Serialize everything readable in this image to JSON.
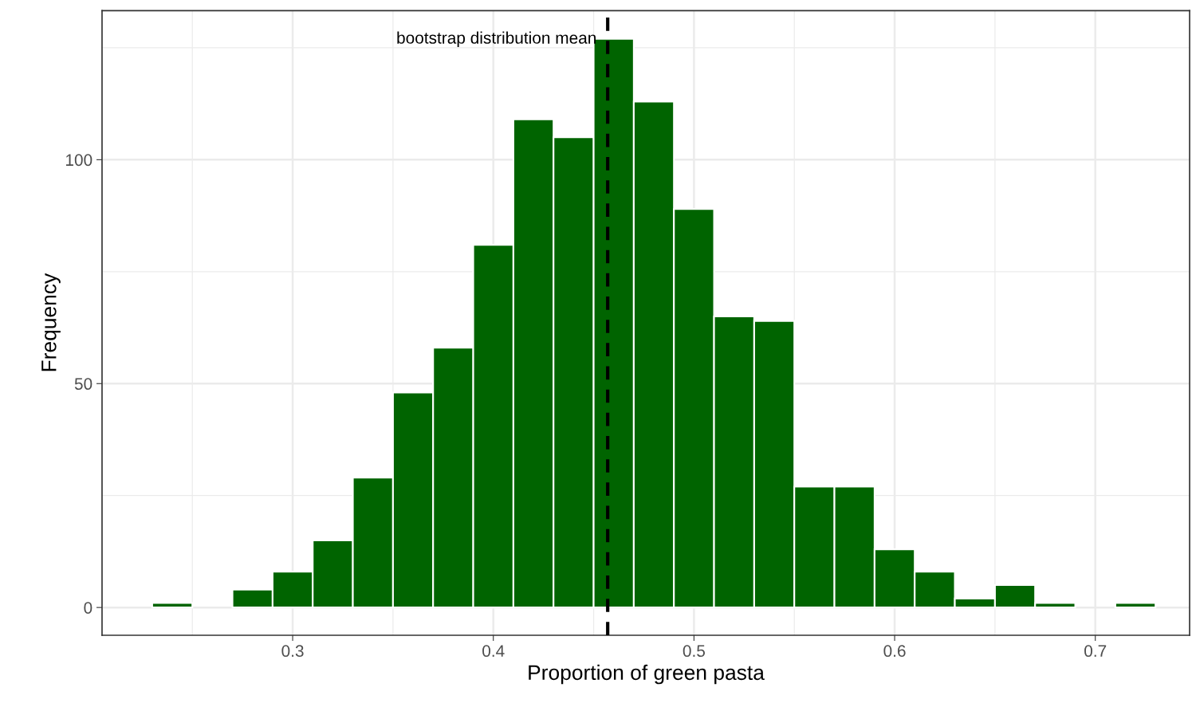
{
  "chart_data": {
    "type": "histogram",
    "xlabel": "Proportion of green pasta",
    "ylabel": "Frequency",
    "bins": [
      0.23,
      0.25,
      0.27,
      0.29,
      0.31,
      0.33,
      0.35,
      0.37,
      0.39,
      0.41,
      0.43,
      0.45,
      0.47,
      0.49,
      0.51,
      0.53,
      0.55,
      0.57,
      0.59,
      0.61,
      0.63,
      0.65,
      0.67,
      0.69,
      0.71,
      0.73
    ],
    "values": [
      1,
      0,
      4,
      8,
      15,
      29,
      48,
      58,
      81,
      109,
      105,
      127,
      113,
      89,
      65,
      64,
      27,
      27,
      13,
      8,
      2,
      5,
      1,
      0,
      1
    ],
    "color": "#006400",
    "xlim": [
      0.205,
      0.747
    ],
    "xticks": [
      0.3,
      0.4,
      0.5,
      0.6,
      0.7
    ],
    "ylim": [
      -6.2,
      133.3
    ],
    "yticks": [
      0,
      50,
      100
    ],
    "grid": true,
    "ref_lines": [
      {
        "axis": "x",
        "value": 0.457,
        "label": "bootstrap distribution mean",
        "color": "#000000",
        "line_style": "dashed"
      }
    ]
  }
}
